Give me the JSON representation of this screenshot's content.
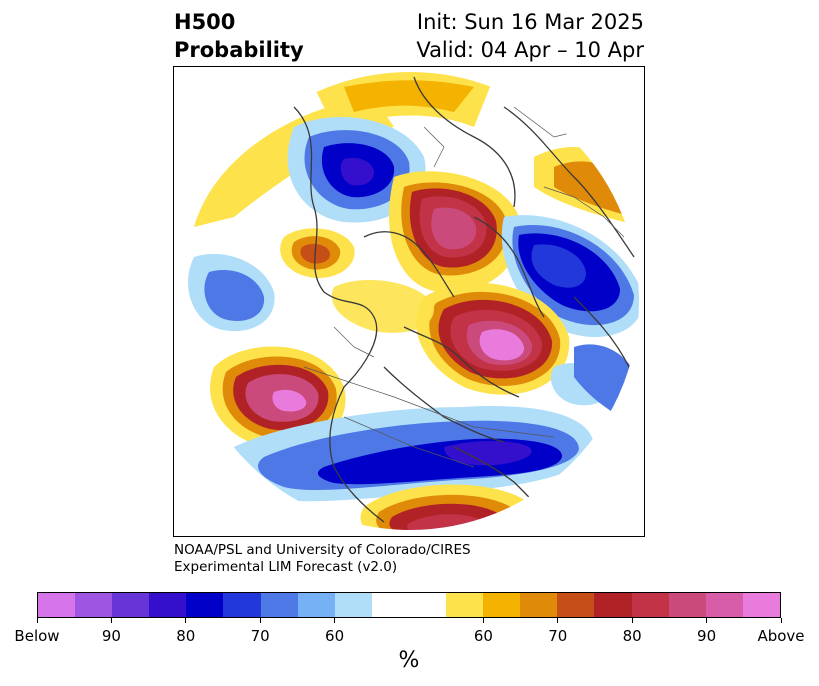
{
  "title": {
    "left_line1": "H500",
    "left_line2": "Probability",
    "right_line1": "Init: Sun 16 Mar 2025",
    "right_line2": "Valid: 04 Apr – 10 Apr"
  },
  "credit": {
    "line1": "NOAA/PSL and University of Colorado/CIRES",
    "line2": "Experimental LIM Forecast (v2.0)"
  },
  "colorbar": {
    "colors": [
      "#d675ea",
      "#9d55e2",
      "#6735d7",
      "#3410cc",
      "#0000c8",
      "#2238da",
      "#4d78e6",
      "#75b1f4",
      "#b0def9",
      "#ffffff",
      "#ffffff",
      "#fde24b",
      "#f3b300",
      "#e08a0a",
      "#c54f17",
      "#b02225",
      "#c23348",
      "#cb4a7c",
      "#d85da9",
      "#e87bdc"
    ],
    "tick_labels": [
      "Below",
      "90",
      "80",
      "70",
      "60",
      "60",
      "70",
      "80",
      "90",
      "Above"
    ],
    "unit_label": "%"
  },
  "map": {
    "projection": "polar-stereographic",
    "icons": [
      "coastline-outline",
      "political-border-outline"
    ],
    "anomaly_palette": {
      "below_strong": "#0000c8",
      "below_mid": "#4d78e6",
      "below_weak": "#b0def9",
      "above_weak": "#fde24b",
      "above_mid": "#c54f17",
      "above_strong": "#cb4a7c"
    }
  }
}
